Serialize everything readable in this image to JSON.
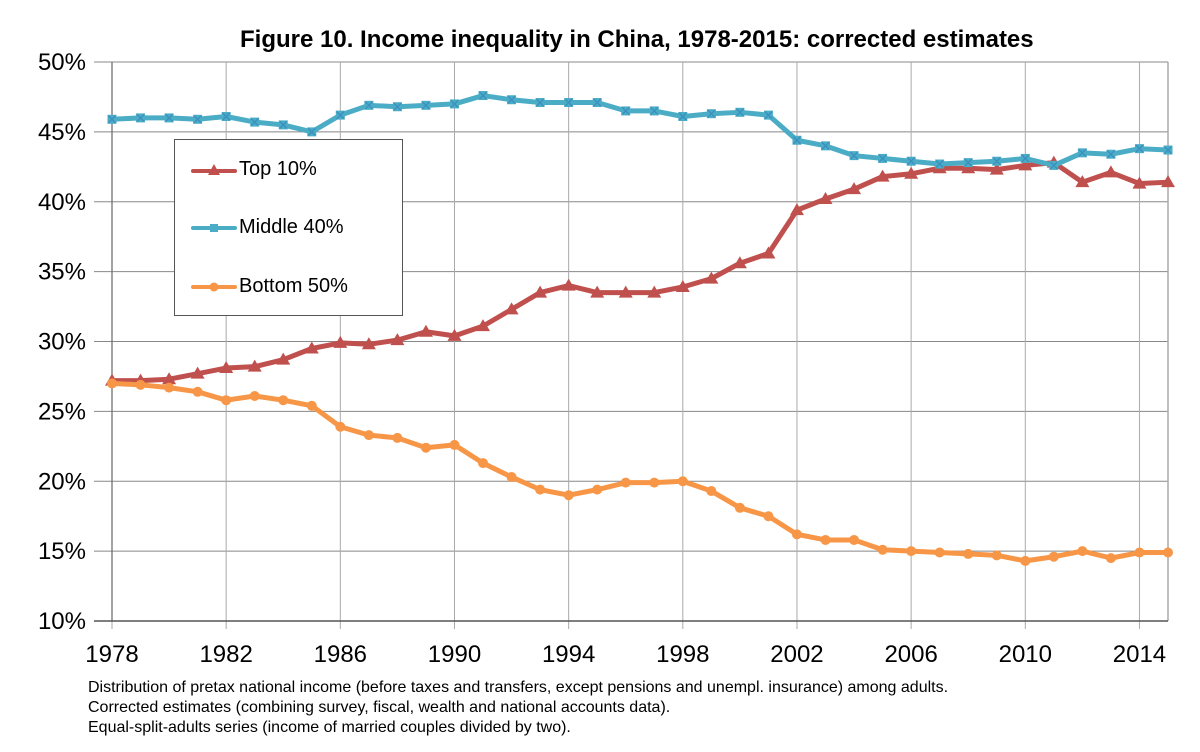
{
  "chart_data": {
    "type": "line",
    "title": "Figure 10. Income inequality in China, 1978-2015: corrected estimates",
    "xlabel": "",
    "ylabel": "",
    "x": [
      1978,
      1979,
      1980,
      1981,
      1982,
      1983,
      1984,
      1985,
      1986,
      1987,
      1988,
      1989,
      1990,
      1991,
      1992,
      1993,
      1994,
      1995,
      1996,
      1997,
      1998,
      1999,
      2000,
      2001,
      2002,
      2003,
      2004,
      2005,
      2006,
      2007,
      2008,
      2009,
      2010,
      2011,
      2012,
      2013,
      2014,
      2015
    ],
    "xlim": [
      1978,
      2015
    ],
    "ylim": [
      10,
      50
    ],
    "x_ticks": [
      "1978",
      "1982",
      "1986",
      "1990",
      "1994",
      "1998",
      "2002",
      "2006",
      "2010",
      "2014"
    ],
    "y_ticks": [
      "10%",
      "15%",
      "20%",
      "25%",
      "30%",
      "35%",
      "40%",
      "45%",
      "50%"
    ],
    "grid": true,
    "legend_position": "upper-left",
    "series": [
      {
        "name": "Top 10%",
        "color": "#c0504d",
        "marker": "triangle",
        "values": [
          27.2,
          27.2,
          27.3,
          27.7,
          28.1,
          28.2,
          28.7,
          29.5,
          29.9,
          29.8,
          30.1,
          30.7,
          30.4,
          31.1,
          32.3,
          33.5,
          34.0,
          33.5,
          33.5,
          33.5,
          33.9,
          34.5,
          35.6,
          36.3,
          39.4,
          40.2,
          40.9,
          41.8,
          42.0,
          42.4,
          42.4,
          42.3,
          42.6,
          42.8,
          41.4,
          42.1,
          41.3,
          41.4
        ]
      },
      {
        "name": "Middle 40%",
        "color": "#4bacc6",
        "marker": "x-square",
        "values": [
          45.9,
          46.0,
          46.0,
          45.9,
          46.1,
          45.7,
          45.5,
          45.0,
          46.2,
          46.9,
          46.8,
          46.9,
          47.0,
          47.6,
          47.3,
          47.1,
          47.1,
          47.1,
          46.5,
          46.5,
          46.1,
          46.3,
          46.4,
          46.2,
          44.4,
          44.0,
          43.3,
          43.1,
          42.9,
          42.7,
          42.8,
          42.9,
          43.1,
          42.6,
          43.5,
          43.4,
          43.8,
          43.7
        ]
      },
      {
        "name": "Bottom 50%",
        "color": "#f79646",
        "marker": "circle",
        "values": [
          27.0,
          26.9,
          26.7,
          26.4,
          25.8,
          26.1,
          25.8,
          25.4,
          23.9,
          23.3,
          23.1,
          22.4,
          22.6,
          21.3,
          20.3,
          19.4,
          19.0,
          19.4,
          19.9,
          19.9,
          20.0,
          19.3,
          18.1,
          17.5,
          16.2,
          15.8,
          15.8,
          15.1,
          15.0,
          14.9,
          14.8,
          14.7,
          14.3,
          14.6,
          15.0,
          14.5,
          14.9,
          14.9
        ]
      }
    ],
    "notes": [
      "Distribution of pretax national income (before taxes and transfers, except pensions and unempl. insurance) among adults.",
      "Corrected estimates (combining survey, fiscal, wealth and national accounts data).",
      "Equal-split-adults series (income of married couples divided by two)."
    ]
  }
}
